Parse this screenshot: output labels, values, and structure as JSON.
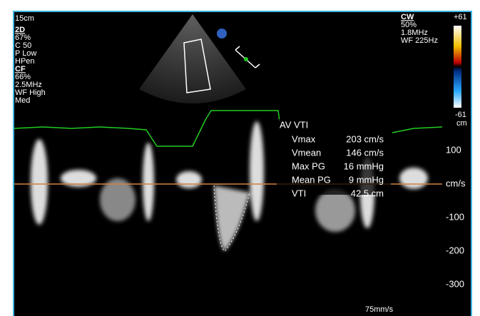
{
  "header": {
    "depth": "15cm"
  },
  "left_panel": {
    "sections": [
      {
        "title": "2D",
        "lines": [
          "67%",
          "C 50",
          "P Low",
          "HPen"
        ]
      },
      {
        "title": "CF",
        "lines": [
          "66%",
          "2.5MHz",
          "WF High",
          "Med"
        ]
      }
    ]
  },
  "right_panel": {
    "title": "CW",
    "lines": [
      "50%",
      "1.8MHz",
      "WF 225Hz"
    ],
    "color_max": "+61",
    "color_min": "-61",
    "color_unit": "cm"
  },
  "measurement": {
    "title": "AV VTI",
    "rows": [
      [
        "Vmax",
        "203 cm/s"
      ],
      [
        "Vmean",
        "146 cm/s"
      ],
      [
        "Max PG",
        "16 mmHg"
      ],
      [
        "Mean PG",
        "9 mmHg"
      ],
      [
        "VTI",
        "42.5 cm"
      ]
    ]
  },
  "scale": {
    "labels": [
      "100",
      "cm/s",
      "-100",
      "-200",
      "-300"
    ]
  },
  "footer": {
    "sweep": "75mm/s"
  }
}
